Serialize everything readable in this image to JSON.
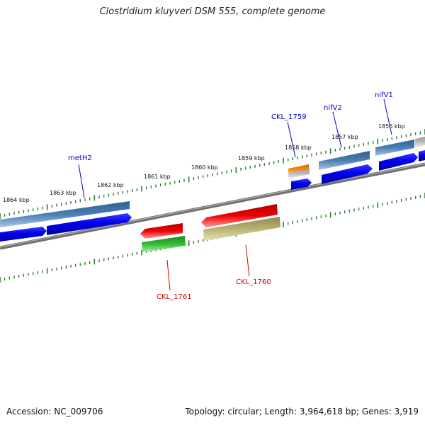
{
  "title": "Clostridium kluyveri DSM 555, complete genome",
  "accession_text": "Accession: NC_009706",
  "summary_text": "Topology: circular; Length: 3,964,618 bp; Genes: 3,919",
  "colors": {
    "backbone": "#808080",
    "tick": "#2f7d2f",
    "forward_label": "#0000cc",
    "reverse_label": "#cc0000",
    "cds_blue": "#0000ee",
    "gene_steel": "#4a7fb2",
    "red": "#ee0000",
    "green": "#33bb33",
    "khaki": "#b9b272",
    "orange": "#ff8800",
    "gray": "#bbbbbb"
  },
  "scale": {
    "unit": "kbp",
    "tick_labels": [
      "1864 kbp",
      "1863 kbp",
      "1862 kbp",
      "1861 kbp",
      "1860 kbp",
      "1859 kbp",
      "1858 kbp",
      "1857 kbp",
      "1856 kbp"
    ]
  },
  "genes": [
    {
      "label": "metH2",
      "strand": "forward"
    },
    {
      "label": "CKL_1759",
      "strand": "forward"
    },
    {
      "label": "nifV2",
      "strand": "forward"
    },
    {
      "label": "nifV1",
      "strand": "forward"
    },
    {
      "label": "CKL_1761",
      "strand": "reverse"
    },
    {
      "label": "CKL_1760",
      "strand": "reverse"
    }
  ]
}
